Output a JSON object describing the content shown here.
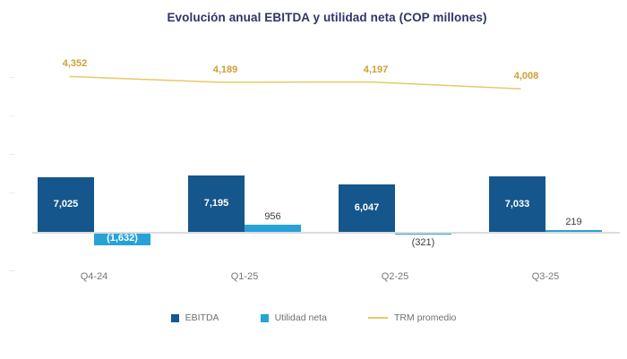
{
  "title": "Evolución anual EBITDA y utilidad neta (COP millones)",
  "legend": [
    {
      "label": "EBITDA",
      "swatch": "square",
      "color": "#15568C"
    },
    {
      "label": "Utilidad neta",
      "swatch": "square",
      "color": "#27A2D8"
    },
    {
      "label": "TRM promedio",
      "swatch": "line",
      "color": "#E6C967"
    }
  ],
  "chart_data": {
    "type": "bar",
    "subtype": "combo-bar-line",
    "title": "Evolución anual EBITDA y utilidad neta (COP millones)",
    "categories": [
      "Q4-24",
      "Q1-25",
      "Q2-25",
      "Q3-25"
    ],
    "series": [
      {
        "name": "EBITDA",
        "type": "bar",
        "axis": "primary",
        "color": "#15568C",
        "values": [
          7025,
          7195,
          6047,
          7033
        ],
        "labels": [
          "7,025",
          "7,195",
          "6,047",
          "7,033"
        ],
        "label_style": "white-bold-inside"
      },
      {
        "name": "Utilidad neta",
        "type": "bar",
        "axis": "primary",
        "color": "#27A2D8",
        "values": [
          -1632,
          956,
          -321,
          219
        ],
        "labels": [
          "(1,632)",
          "956",
          "(321)",
          "219"
        ]
      },
      {
        "name": "TRM promedio",
        "type": "line",
        "axis": "secondary",
        "color": "#E6C967",
        "label_color": "#CCA136",
        "values": [
          4352,
          4189,
          4197,
          4008
        ],
        "labels": [
          "4,352",
          "4,189",
          "4,197",
          "4,008"
        ]
      }
    ],
    "y_axis": {
      "labels_visible": false,
      "tick_marks_visible": true,
      "implied_tick_interval": 5000,
      "baseline_value": 0
    },
    "legend_position": "bottom",
    "grid": "off"
  }
}
